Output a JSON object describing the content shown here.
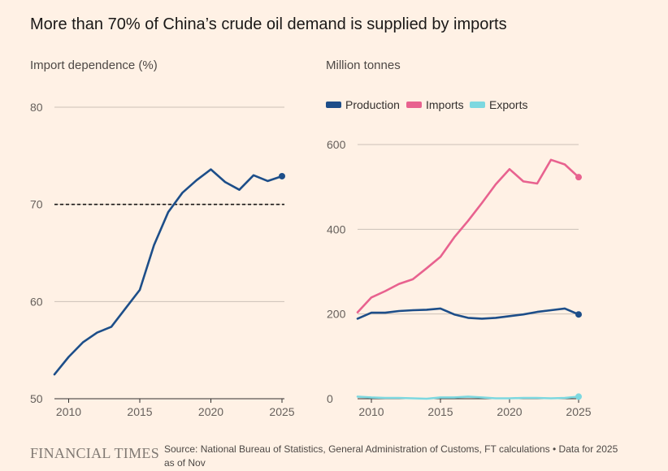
{
  "title": "More than 70% of China’s crude oil demand is supplied by imports",
  "footer": {
    "brand": "FINANCIAL TIMES",
    "source": "Source: National Bureau of Statistics, General Administration of Customs, FT calculations • Data for 2025 as of Nov"
  },
  "colors": {
    "background": "#fff1e5",
    "dependence": "#1d4e89",
    "production": "#1d4e89",
    "imports": "#e8628f",
    "exports": "#7dd8e0",
    "grid": "#ccc1b7"
  },
  "chart_data": [
    {
      "type": "line",
      "subtitle": "Import dependence (%)",
      "x": [
        2009,
        2010,
        2011,
        2012,
        2013,
        2014,
        2015,
        2016,
        2017,
        2018,
        2019,
        2020,
        2021,
        2022,
        2023,
        2024,
        2025
      ],
      "series": [
        {
          "name": "Import dependence",
          "values": [
            52.5,
            54.3,
            55.8,
            56.8,
            57.4,
            59.3,
            61.2,
            65.8,
            69.2,
            71.2,
            72.5,
            73.6,
            72.3,
            71.5,
            73.0,
            72.4,
            72.9
          ]
        }
      ],
      "reference_line": {
        "y": 70,
        "style": "dashed"
      },
      "ylim": [
        50,
        80
      ],
      "yticks": [
        50,
        60,
        70,
        80
      ],
      "xticks": [
        2010,
        2015,
        2020,
        2025
      ],
      "xlim": [
        2009,
        2025
      ],
      "end_marker": true
    },
    {
      "type": "line",
      "subtitle": "Million tonnes",
      "x": [
        2009,
        2010,
        2011,
        2012,
        2013,
        2014,
        2015,
        2016,
        2017,
        2018,
        2019,
        2020,
        2021,
        2022,
        2023,
        2024,
        2025
      ],
      "series": [
        {
          "name": "Production",
          "values": [
            189,
            203,
            203,
            207,
            209,
            210,
            213,
            199,
            191,
            189,
            191,
            195,
            199,
            205,
            209,
            213,
            199
          ]
        },
        {
          "name": "Imports",
          "values": [
            204,
            239,
            254,
            271,
            282,
            308,
            335,
            381,
            420,
            462,
            506,
            542,
            513,
            508,
            564,
            553,
            523
          ]
        },
        {
          "name": "Exports",
          "values": [
            5,
            3,
            2,
            2,
            1,
            0,
            3,
            3,
            5,
            3,
            1,
            1,
            2,
            2,
            1,
            2,
            5
          ]
        }
      ],
      "legend": [
        "Production",
        "Imports",
        "Exports"
      ],
      "ylim": [
        0,
        600
      ],
      "yticks": [
        0,
        200,
        400,
        600
      ],
      "xticks": [
        2010,
        2015,
        2020,
        2025
      ],
      "xlim": [
        2009,
        2025
      ],
      "end_marker": true
    }
  ]
}
